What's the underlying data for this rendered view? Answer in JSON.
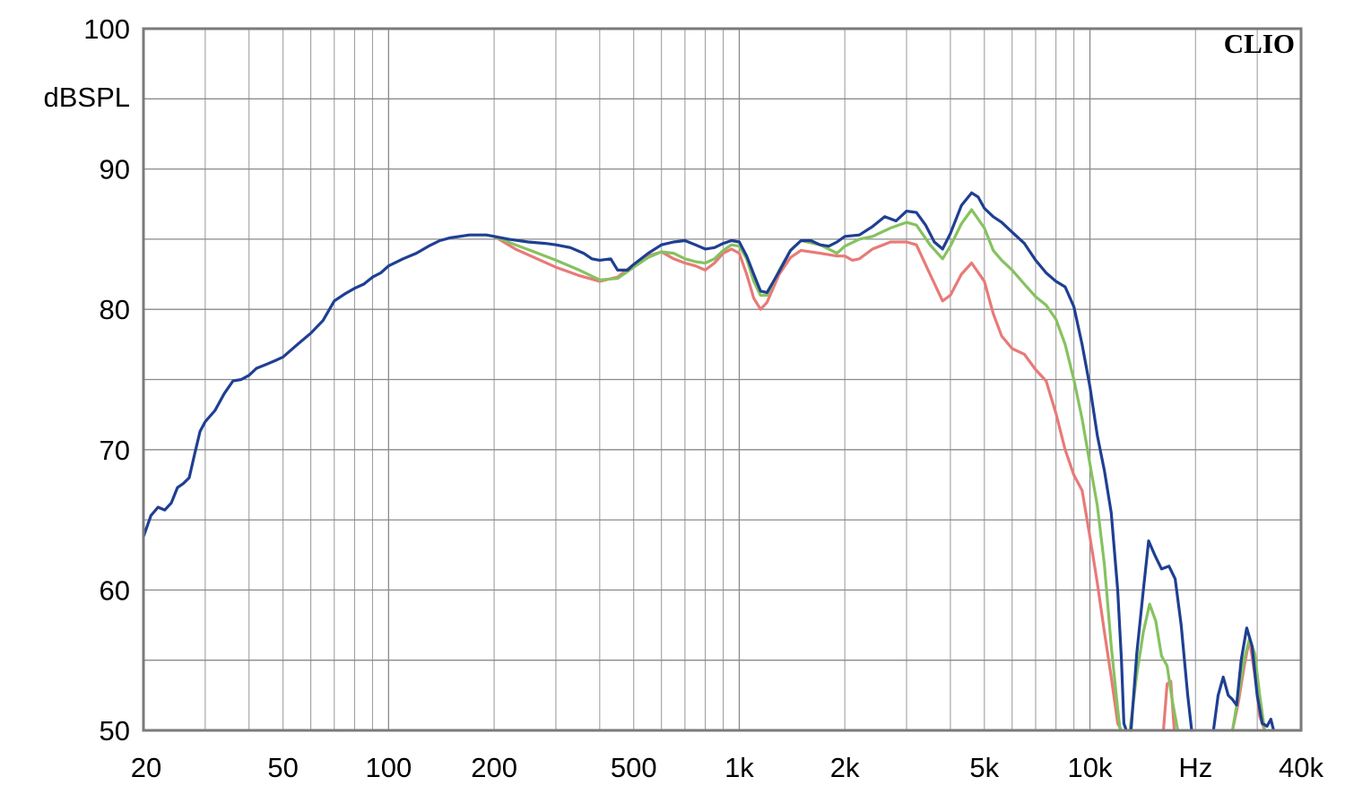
{
  "chart_data": {
    "type": "line",
    "brand": "CLIO",
    "ylabel": "dBSPL",
    "xlabel": "Hz",
    "x_scale": "log",
    "xlim": [
      20,
      40000
    ],
    "ylim": [
      50,
      100
    ],
    "y_ticks": [
      "100",
      "90",
      "80",
      "70",
      "60",
      "50"
    ],
    "x_ticks": [
      {
        "value": 20,
        "label": "20"
      },
      {
        "value": 50,
        "label": "50"
      },
      {
        "value": 100,
        "label": "100"
      },
      {
        "value": 200,
        "label": "200"
      },
      {
        "value": 500,
        "label": "500"
      },
      {
        "value": 1000,
        "label": "1k"
      },
      {
        "value": 2000,
        "label": "2k"
      },
      {
        "value": 5000,
        "label": "5k"
      },
      {
        "value": 10000,
        "label": "10k"
      },
      {
        "value": 20000,
        "label": "Hz"
      },
      {
        "value": 40000,
        "label": "40k"
      }
    ],
    "grid": true,
    "series": [
      {
        "color": "#e87a78",
        "points": [
          [
            200,
            85.2
          ],
          [
            230,
            84.3
          ],
          [
            260,
            83.7
          ],
          [
            300,
            83.0
          ],
          [
            350,
            82.4
          ],
          [
            400,
            82.0
          ],
          [
            450,
            82.3
          ],
          [
            500,
            83.2
          ],
          [
            550,
            83.8
          ],
          [
            600,
            84.1
          ],
          [
            650,
            83.6
          ],
          [
            700,
            83.3
          ],
          [
            750,
            83.1
          ],
          [
            800,
            82.8
          ],
          [
            850,
            83.3
          ],
          [
            900,
            84.0
          ],
          [
            950,
            84.3
          ],
          [
            1000,
            84.0
          ],
          [
            1050,
            82.5
          ],
          [
            1100,
            80.8
          ],
          [
            1150,
            80.0
          ],
          [
            1200,
            80.5
          ],
          [
            1300,
            82.5
          ],
          [
            1400,
            83.7
          ],
          [
            1500,
            84.2
          ],
          [
            1700,
            84.0
          ],
          [
            1900,
            83.8
          ],
          [
            2000,
            83.8
          ],
          [
            2100,
            83.5
          ],
          [
            2200,
            83.6
          ],
          [
            2400,
            84.3
          ],
          [
            2700,
            84.8
          ],
          [
            3000,
            84.8
          ],
          [
            3200,
            84.6
          ],
          [
            3500,
            82.5
          ],
          [
            3800,
            80.6
          ],
          [
            4000,
            81.0
          ],
          [
            4300,
            82.5
          ],
          [
            4600,
            83.3
          ],
          [
            5000,
            82.0
          ],
          [
            5300,
            79.7
          ],
          [
            5600,
            78.1
          ],
          [
            6000,
            77.2
          ],
          [
            6500,
            76.8
          ],
          [
            7000,
            75.7
          ],
          [
            7500,
            74.9
          ],
          [
            8000,
            72.6
          ],
          [
            8500,
            70.0
          ],
          [
            9000,
            68.2
          ],
          [
            9500,
            67.1
          ],
          [
            10000,
            63.8
          ],
          [
            10500,
            60.5
          ],
          [
            11000,
            57.0
          ],
          [
            11500,
            53.8
          ],
          [
            12000,
            50.5
          ],
          [
            12300,
            50
          ]
        ],
        "points2": [
          [
            16200,
            50
          ],
          [
            16600,
            53.3
          ],
          [
            17000,
            53.5
          ],
          [
            17400,
            50
          ]
        ],
        "points3": [
          [
            25500,
            50
          ],
          [
            26500,
            52.0
          ],
          [
            27500,
            54.5
          ],
          [
            28500,
            56.5
          ],
          [
            29500,
            54.0
          ],
          [
            30500,
            51.0
          ],
          [
            31500,
            50
          ]
        ]
      },
      {
        "color": "#86c25f",
        "points": [
          [
            200,
            85.2
          ],
          [
            230,
            84.6
          ],
          [
            260,
            84.1
          ],
          [
            300,
            83.5
          ],
          [
            350,
            82.8
          ],
          [
            400,
            82.1
          ],
          [
            450,
            82.2
          ],
          [
            500,
            83.0
          ],
          [
            550,
            83.7
          ],
          [
            600,
            84.1
          ],
          [
            650,
            84.0
          ],
          [
            700,
            83.6
          ],
          [
            750,
            83.4
          ],
          [
            800,
            83.3
          ],
          [
            850,
            83.6
          ],
          [
            900,
            84.2
          ],
          [
            950,
            84.6
          ],
          [
            1000,
            84.5
          ],
          [
            1050,
            83.6
          ],
          [
            1100,
            82.0
          ],
          [
            1150,
            81.0
          ],
          [
            1200,
            81.0
          ],
          [
            1300,
            82.8
          ],
          [
            1400,
            84.2
          ],
          [
            1500,
            84.9
          ],
          [
            1700,
            84.6
          ],
          [
            1900,
            84.0
          ],
          [
            2000,
            84.5
          ],
          [
            2200,
            85.0
          ],
          [
            2400,
            85.2
          ],
          [
            2700,
            85.8
          ],
          [
            3000,
            86.2
          ],
          [
            3200,
            86.0
          ],
          [
            3500,
            84.6
          ],
          [
            3800,
            83.6
          ],
          [
            4000,
            84.5
          ],
          [
            4300,
            86.1
          ],
          [
            4600,
            87.1
          ],
          [
            5000,
            85.8
          ],
          [
            5300,
            84.2
          ],
          [
            5600,
            83.5
          ],
          [
            6000,
            82.8
          ],
          [
            6500,
            81.8
          ],
          [
            7000,
            80.9
          ],
          [
            7500,
            80.3
          ],
          [
            8000,
            79.3
          ],
          [
            8500,
            77.5
          ],
          [
            9000,
            75.0
          ],
          [
            9500,
            72.2
          ],
          [
            10000,
            69.0
          ],
          [
            10500,
            66.0
          ],
          [
            11000,
            61.8
          ],
          [
            11500,
            56.0
          ],
          [
            12000,
            51.5
          ],
          [
            12200,
            50
          ]
        ],
        "points2": [
          [
            13000,
            50
          ],
          [
            13600,
            54.0
          ],
          [
            14200,
            57.0
          ],
          [
            14800,
            59.0
          ],
          [
            15400,
            57.8
          ],
          [
            16000,
            55.3
          ],
          [
            16600,
            54.6
          ],
          [
            17200,
            52.0
          ],
          [
            17800,
            50
          ]
        ],
        "points3": [
          [
            25500,
            50
          ],
          [
            26500,
            52.5
          ],
          [
            27500,
            55.0
          ],
          [
            28500,
            56.5
          ],
          [
            29500,
            55.5
          ],
          [
            30500,
            52.5
          ],
          [
            31500,
            50
          ]
        ]
      },
      {
        "color": "#1f3f92",
        "points": [
          [
            20,
            63.8
          ],
          [
            21,
            65.3
          ],
          [
            22,
            65.9
          ],
          [
            23,
            65.7
          ],
          [
            24,
            66.2
          ],
          [
            25,
            67.3
          ],
          [
            26,
            67.6
          ],
          [
            27,
            68.0
          ],
          [
            28,
            69.7
          ],
          [
            29,
            71.3
          ],
          [
            30,
            72.0
          ],
          [
            32,
            72.8
          ],
          [
            34,
            74.0
          ],
          [
            36,
            74.9
          ],
          [
            38,
            75.0
          ],
          [
            40,
            75.3
          ],
          [
            42,
            75.8
          ],
          [
            45,
            76.1
          ],
          [
            48,
            76.4
          ],
          [
            50,
            76.6
          ],
          [
            55,
            77.5
          ],
          [
            60,
            78.3
          ],
          [
            65,
            79.2
          ],
          [
            70,
            80.6
          ],
          [
            75,
            81.1
          ],
          [
            80,
            81.5
          ],
          [
            85,
            81.8
          ],
          [
            90,
            82.3
          ],
          [
            95,
            82.6
          ],
          [
            100,
            83.1
          ],
          [
            110,
            83.6
          ],
          [
            120,
            84.0
          ],
          [
            130,
            84.5
          ],
          [
            140,
            84.9
          ],
          [
            150,
            85.1
          ],
          [
            170,
            85.3
          ],
          [
            190,
            85.3
          ],
          [
            200,
            85.2
          ],
          [
            220,
            85.0
          ],
          [
            250,
            84.8
          ],
          [
            280,
            84.7
          ],
          [
            300,
            84.6
          ],
          [
            330,
            84.4
          ],
          [
            360,
            84.0
          ],
          [
            380,
            83.6
          ],
          [
            400,
            83.5
          ],
          [
            430,
            83.6
          ],
          [
            450,
            82.8
          ],
          [
            480,
            82.8
          ],
          [
            500,
            83.2
          ],
          [
            550,
            84.0
          ],
          [
            600,
            84.6
          ],
          [
            650,
            84.8
          ],
          [
            700,
            84.9
          ],
          [
            750,
            84.6
          ],
          [
            800,
            84.3
          ],
          [
            850,
            84.4
          ],
          [
            900,
            84.7
          ],
          [
            950,
            84.9
          ],
          [
            1000,
            84.8
          ],
          [
            1050,
            83.8
          ],
          [
            1100,
            82.5
          ],
          [
            1150,
            81.3
          ],
          [
            1200,
            81.2
          ],
          [
            1300,
            82.7
          ],
          [
            1400,
            84.2
          ],
          [
            1500,
            84.9
          ],
          [
            1600,
            84.9
          ],
          [
            1700,
            84.6
          ],
          [
            1800,
            84.5
          ],
          [
            1900,
            84.8
          ],
          [
            2000,
            85.2
          ],
          [
            2200,
            85.3
          ],
          [
            2400,
            85.9
          ],
          [
            2600,
            86.6
          ],
          [
            2800,
            86.3
          ],
          [
            3000,
            87.0
          ],
          [
            3200,
            86.9
          ],
          [
            3400,
            86.0
          ],
          [
            3600,
            84.8
          ],
          [
            3800,
            84.3
          ],
          [
            4000,
            85.4
          ],
          [
            4300,
            87.4
          ],
          [
            4600,
            88.3
          ],
          [
            4800,
            88.0
          ],
          [
            5000,
            87.2
          ],
          [
            5300,
            86.6
          ],
          [
            5600,
            86.2
          ],
          [
            6000,
            85.5
          ],
          [
            6500,
            84.7
          ],
          [
            7000,
            83.5
          ],
          [
            7500,
            82.6
          ],
          [
            8000,
            82.0
          ],
          [
            8500,
            81.6
          ],
          [
            9000,
            80.2
          ],
          [
            9500,
            77.5
          ],
          [
            10000,
            74.5
          ],
          [
            10500,
            71.0
          ],
          [
            11000,
            68.5
          ],
          [
            11500,
            65.5
          ],
          [
            12000,
            60.0
          ],
          [
            12300,
            55.0
          ],
          [
            12500,
            50.5
          ],
          [
            12700,
            50
          ]
        ],
        "points2": [
          [
            13100,
            50
          ],
          [
            13600,
            55.5
          ],
          [
            14200,
            60.0
          ],
          [
            14700,
            63.5
          ],
          [
            15300,
            62.5
          ],
          [
            16000,
            61.5
          ],
          [
            16800,
            61.7
          ],
          [
            17500,
            60.8
          ],
          [
            18200,
            57.5
          ],
          [
            19000,
            52.5
          ],
          [
            19500,
            50
          ]
        ],
        "points3": [
          [
            22500,
            50
          ],
          [
            23200,
            52.5
          ],
          [
            24000,
            53.8
          ],
          [
            24800,
            52.5
          ],
          [
            25500,
            52.2
          ],
          [
            26200,
            51.8
          ],
          [
            27000,
            55.0
          ],
          [
            28000,
            57.3
          ],
          [
            29000,
            56.0
          ],
          [
            30000,
            52.5
          ],
          [
            31000,
            50.5
          ],
          [
            32000,
            50.3
          ],
          [
            32800,
            50.8
          ],
          [
            33400,
            50
          ]
        ]
      }
    ]
  }
}
